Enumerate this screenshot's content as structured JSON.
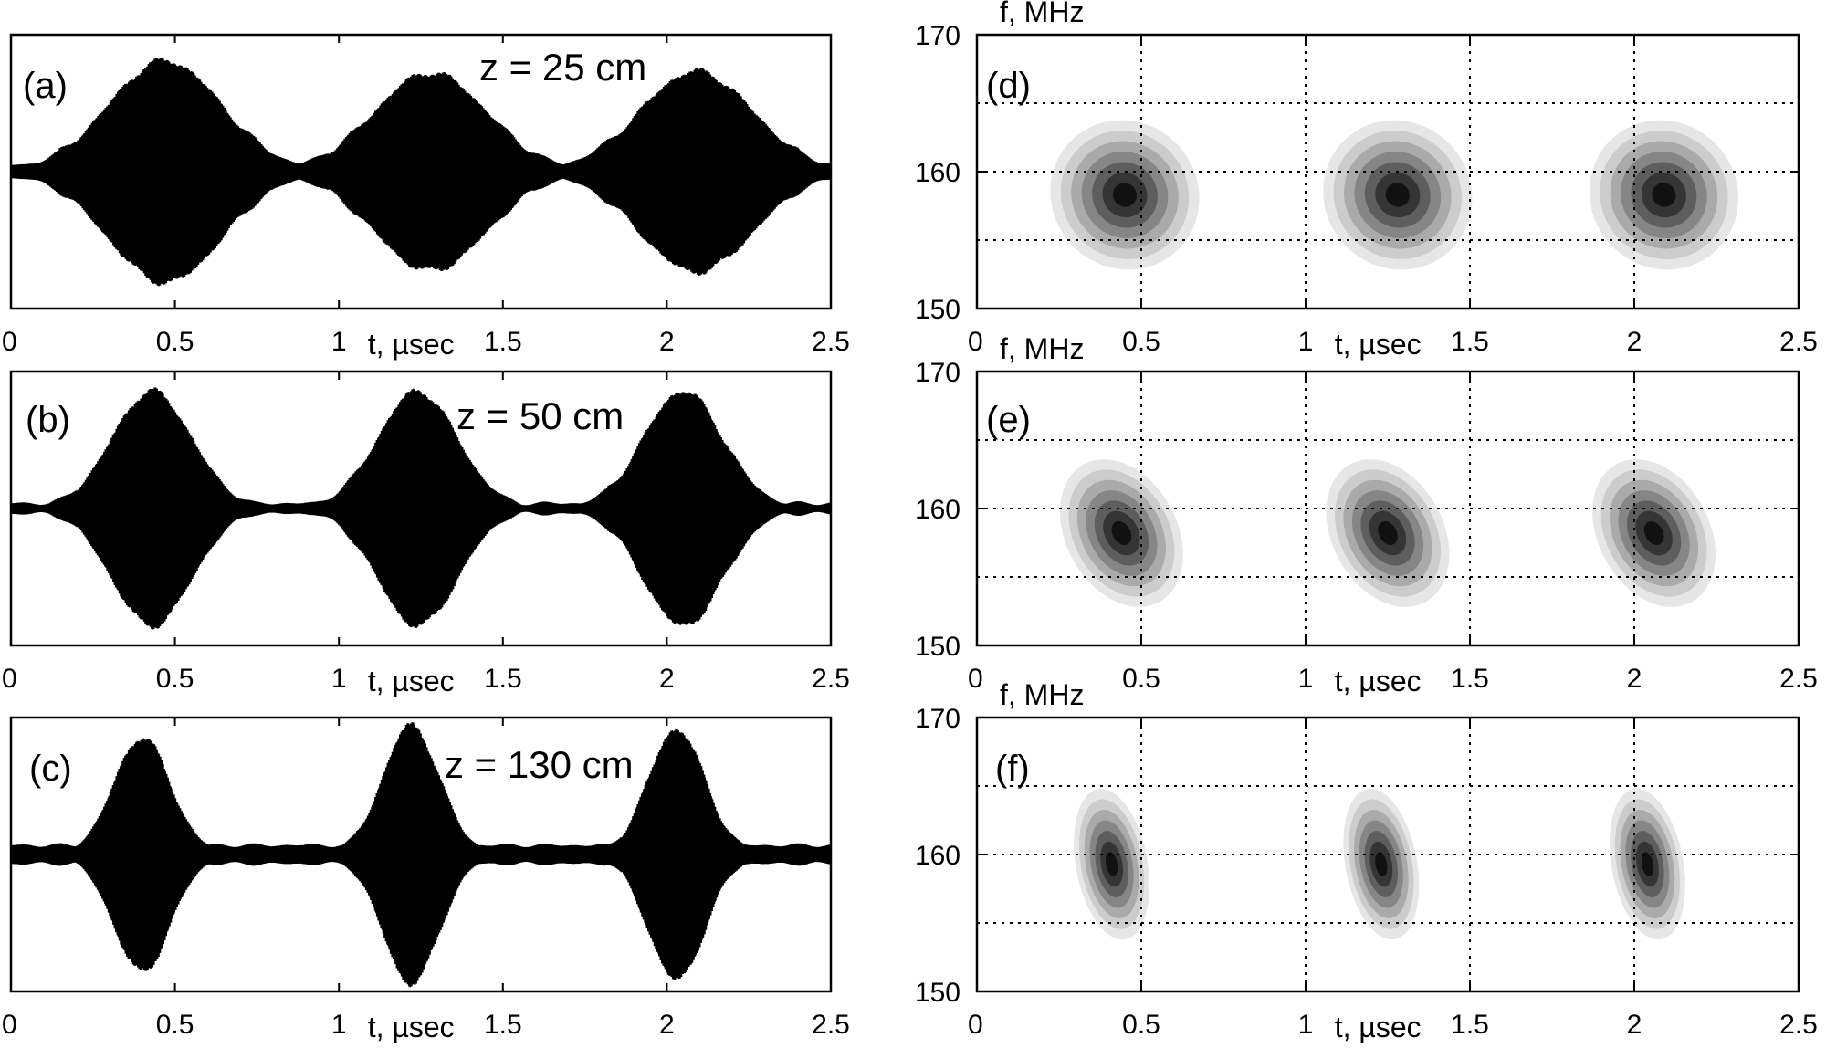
{
  "figure": {
    "time_axis_label": "t, µsec",
    "freq_axis_label": "f, MHz",
    "time_ticks": [
      "0",
      "0.5",
      "1",
      "1.5",
      "2",
      "2.5"
    ],
    "freq_ticks": [
      "150",
      "160",
      "170"
    ]
  },
  "chart_data": [
    {
      "type": "line",
      "panel": "(a)",
      "annotation": "z = 25 cm",
      "xlabel": "t, µsec",
      "ylabel": "",
      "xlim": [
        0,
        2.5
      ],
      "carrier_frequency_mhz": 160,
      "envelope_peaks": [
        {
          "t": 0.47,
          "amplitude": 0.82
        },
        {
          "t": 1.28,
          "amplitude": 0.73
        },
        {
          "t": 2.09,
          "amplitude": 0.74
        }
      ],
      "envelope_width_usec": 0.17,
      "baseline_amplitude": 0.05
    },
    {
      "type": "line",
      "panel": "(b)",
      "annotation": "z = 50 cm",
      "xlabel": "t, µsec",
      "ylabel": "",
      "xlim": [
        0,
        2.5
      ],
      "carrier_frequency_mhz": 160,
      "envelope_peaks": [
        {
          "t": 0.43,
          "amplitude": 0.87
        },
        {
          "t": 1.24,
          "amplitude": 0.87
        },
        {
          "t": 2.05,
          "amplitude": 0.87
        }
      ],
      "envelope_width_usec": 0.12,
      "baseline_amplitude": 0.04
    },
    {
      "type": "line",
      "panel": "(c)",
      "annotation": "z = 130 cm",
      "xlabel": "t, µsec",
      "ylabel": "",
      "xlim": [
        0,
        2.5
      ],
      "carrier_frequency_mhz": 160,
      "envelope_peaks": [
        {
          "t": 0.4,
          "amplitude": 0.86
        },
        {
          "t": 1.22,
          "amplitude": 0.95
        },
        {
          "t": 2.03,
          "amplitude": 0.92
        }
      ],
      "envelope_width_usec": 0.085,
      "baseline_amplitude": 0.07
    },
    {
      "type": "heatmap",
      "panel": "(d)",
      "xlabel": "t, µsec",
      "ylabel": "f, MHz",
      "xlim": [
        0,
        2.5
      ],
      "ylim": [
        150,
        170
      ],
      "grid": true,
      "gridlines_t": [
        0.5,
        1,
        1.5,
        2
      ],
      "gridlines_f": [
        155,
        160,
        165
      ],
      "blobs": [
        {
          "t": 0.45,
          "f": 158.3,
          "sigma_t": 0.1,
          "sigma_f": 3.6,
          "tilt": -0.75
        },
        {
          "t": 1.28,
          "f": 158.3,
          "sigma_t": 0.1,
          "sigma_f": 3.6,
          "tilt": -0.75
        },
        {
          "t": 2.09,
          "f": 158.3,
          "sigma_t": 0.1,
          "sigma_f": 3.6,
          "tilt": -0.75
        }
      ]
    },
    {
      "type": "heatmap",
      "panel": "(e)",
      "xlabel": "t, µsec",
      "ylabel": "f, MHz",
      "xlim": [
        0,
        2.5
      ],
      "ylim": [
        150,
        170
      ],
      "grid": true,
      "gridlines_t": [
        0.5,
        1,
        1.5,
        2
      ],
      "gridlines_f": [
        155,
        160,
        165
      ],
      "blobs": [
        {
          "t": 0.44,
          "f": 158.2,
          "sigma_t": 0.08,
          "sigma_f": 3.7,
          "tilt": -0.5
        },
        {
          "t": 1.25,
          "f": 158.2,
          "sigma_t": 0.08,
          "sigma_f": 3.7,
          "tilt": -0.5
        },
        {
          "t": 2.06,
          "f": 158.2,
          "sigma_t": 0.08,
          "sigma_f": 3.7,
          "tilt": -0.5
        }
      ]
    },
    {
      "type": "heatmap",
      "panel": "(f)",
      "xlabel": "t, µsec",
      "ylabel": "f, MHz",
      "xlim": [
        0,
        2.5
      ],
      "ylim": [
        150,
        170
      ],
      "grid": true,
      "gridlines_t": [
        0.5,
        1,
        1.5,
        2
      ],
      "gridlines_f": [
        155,
        160,
        165
      ],
      "blobs": [
        {
          "t": 0.41,
          "f": 159.3,
          "sigma_t": 0.065,
          "sigma_f": 3.6,
          "tilt": -0.18
        },
        {
          "t": 1.23,
          "f": 159.3,
          "sigma_t": 0.065,
          "sigma_f": 3.6,
          "tilt": -0.18
        },
        {
          "t": 2.04,
          "f": 159.3,
          "sigma_t": 0.065,
          "sigma_f": 3.6,
          "tilt": -0.18
        }
      ]
    }
  ]
}
